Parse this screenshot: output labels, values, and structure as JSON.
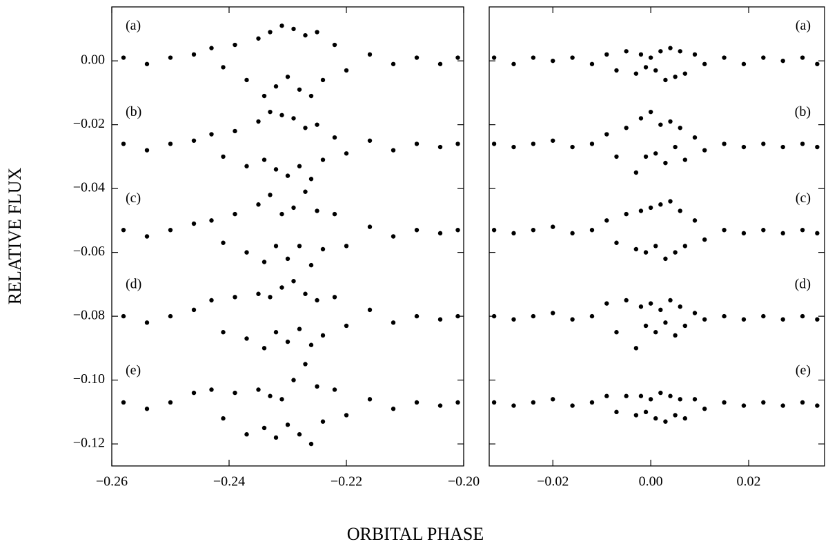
{
  "figure": {
    "xlabel": "ORBITAL PHASE",
    "ylabel": "RELATIVE FLUX"
  },
  "chart_data": [
    {
      "type": "scatter",
      "xlim": [
        -0.26,
        -0.2
      ],
      "ylim": [
        -0.1269,
        0.0169
      ],
      "xticks": [
        {
          "value": -0.26,
          "label": "−0.26"
        },
        {
          "value": -0.24,
          "label": "−0.24"
        },
        {
          "value": -0.22,
          "label": "−0.22"
        },
        {
          "value": -0.2,
          "label": "−0.20"
        }
      ],
      "yticks": [
        {
          "value": 0,
          "label": "0.00"
        },
        {
          "value": -0.02,
          "label": "−0.02"
        },
        {
          "value": -0.04,
          "label": "−0.04"
        },
        {
          "value": -0.06,
          "label": "−0.06"
        },
        {
          "value": -0.08,
          "label": "−0.08"
        },
        {
          "value": -0.1,
          "label": "−0.10"
        },
        {
          "value": -0.12,
          "label": "−0.12"
        }
      ],
      "label_side": "left",
      "x": [
        -0.258,
        -0.254,
        -0.25,
        -0.246,
        -0.243,
        -0.241,
        -0.239,
        -0.237,
        -0.235,
        -0.234,
        -0.233,
        -0.232,
        -0.231,
        -0.23,
        -0.229,
        -0.228,
        -0.227,
        -0.226,
        -0.225,
        -0.224,
        -0.222,
        -0.22,
        -0.216,
        -0.212,
        -0.208,
        -0.204,
        -0.201
      ],
      "series": [
        {
          "name": "(a)",
          "color": "#000000",
          "values": [
            0.001,
            -0.001,
            0.001,
            0.002,
            0.004,
            -0.002,
            0.005,
            -0.006,
            0.007,
            -0.011,
            0.009,
            -0.008,
            0.011,
            -0.005,
            0.01,
            -0.009,
            0.008,
            -0.011,
            0.009,
            -0.006,
            0.005,
            -0.003,
            0.002,
            -0.001,
            0.001,
            -0.001,
            0.001
          ]
        },
        {
          "name": "(b)",
          "color": "#000000",
          "values": [
            -0.026,
            -0.028,
            -0.026,
            -0.025,
            -0.023,
            -0.03,
            -0.022,
            -0.033,
            -0.019,
            -0.031,
            -0.016,
            -0.034,
            -0.017,
            -0.036,
            -0.018,
            -0.033,
            -0.021,
            -0.037,
            -0.02,
            -0.031,
            -0.024,
            -0.029,
            -0.025,
            -0.028,
            -0.026,
            -0.027,
            -0.026
          ]
        },
        {
          "name": "(c)",
          "color": "#000000",
          "values": [
            -0.053,
            -0.055,
            -0.053,
            -0.051,
            -0.05,
            -0.057,
            -0.048,
            -0.06,
            -0.045,
            -0.063,
            -0.042,
            -0.058,
            -0.048,
            -0.062,
            -0.046,
            -0.058,
            -0.041,
            -0.064,
            -0.047,
            -0.059,
            -0.048,
            -0.058,
            -0.052,
            -0.055,
            -0.053,
            -0.054,
            -0.053
          ]
        },
        {
          "name": "(d)",
          "color": "#000000",
          "values": [
            -0.08,
            -0.082,
            -0.08,
            -0.078,
            -0.075,
            -0.085,
            -0.074,
            -0.087,
            -0.073,
            -0.09,
            -0.074,
            -0.085,
            -0.071,
            -0.088,
            -0.069,
            -0.084,
            -0.073,
            -0.089,
            -0.075,
            -0.086,
            -0.074,
            -0.083,
            -0.078,
            -0.082,
            -0.08,
            -0.081,
            -0.08
          ]
        },
        {
          "name": "(e)",
          "color": "#000000",
          "values": [
            -0.107,
            -0.109,
            -0.107,
            -0.104,
            -0.103,
            -0.112,
            -0.104,
            -0.117,
            -0.103,
            -0.115,
            -0.105,
            -0.118,
            -0.106,
            -0.114,
            -0.1,
            -0.117,
            -0.095,
            -0.12,
            -0.102,
            -0.113,
            -0.103,
            -0.111,
            -0.106,
            -0.109,
            -0.107,
            -0.108,
            -0.107
          ]
        }
      ]
    },
    {
      "type": "scatter",
      "xlim": [
        -0.033,
        0.0355
      ],
      "ylim": [
        -0.1269,
        0.0169
      ],
      "xticks": [
        {
          "value": -0.02,
          "label": "−0.02"
        },
        {
          "value": 0,
          "label": "0.00"
        },
        {
          "value": 0.02,
          "label": "0.02"
        }
      ],
      "yticks": [
        0,
        -0.02,
        -0.04,
        -0.06,
        -0.08,
        -0.1,
        -0.12
      ],
      "label_side": "right",
      "x": [
        -0.032,
        -0.028,
        -0.024,
        -0.02,
        -0.016,
        -0.012,
        -0.009,
        -0.007,
        -0.005,
        -0.003,
        -0.002,
        -0.001,
        0.0,
        0.001,
        0.002,
        0.003,
        0.004,
        0.005,
        0.006,
        0.007,
        0.009,
        0.011,
        0.015,
        0.019,
        0.023,
        0.027,
        0.031,
        0.034
      ],
      "series": [
        {
          "name": "(a)",
          "color": "#000000",
          "values": [
            0.001,
            -0.001,
            0.001,
            0.0,
            0.001,
            -0.001,
            0.002,
            -0.003,
            0.003,
            -0.004,
            0.002,
            -0.002,
            0.001,
            -0.003,
            0.003,
            -0.006,
            0.004,
            -0.005,
            0.003,
            -0.004,
            0.002,
            -0.001,
            0.001,
            -0.001,
            0.001,
            0.0,
            0.001,
            -0.001
          ]
        },
        {
          "name": "(b)",
          "color": "#000000",
          "values": [
            -0.026,
            -0.027,
            -0.026,
            -0.025,
            -0.027,
            -0.026,
            -0.023,
            -0.03,
            -0.021,
            -0.035,
            -0.018,
            -0.03,
            -0.016,
            -0.029,
            -0.02,
            -0.032,
            -0.019,
            -0.027,
            -0.021,
            -0.031,
            -0.024,
            -0.028,
            -0.026,
            -0.027,
            -0.026,
            -0.027,
            -0.026,
            -0.027
          ]
        },
        {
          "name": "(c)",
          "color": "#000000",
          "values": [
            -0.053,
            -0.054,
            -0.053,
            -0.052,
            -0.054,
            -0.053,
            -0.05,
            -0.057,
            -0.048,
            -0.059,
            -0.047,
            -0.06,
            -0.046,
            -0.058,
            -0.045,
            -0.062,
            -0.044,
            -0.06,
            -0.047,
            -0.058,
            -0.05,
            -0.056,
            -0.053,
            -0.054,
            -0.053,
            -0.054,
            -0.053,
            -0.054
          ]
        },
        {
          "name": "(d)",
          "color": "#000000",
          "values": [
            -0.08,
            -0.081,
            -0.08,
            -0.079,
            -0.081,
            -0.08,
            -0.076,
            -0.085,
            -0.075,
            -0.09,
            -0.077,
            -0.083,
            -0.076,
            -0.085,
            -0.078,
            -0.082,
            -0.075,
            -0.086,
            -0.077,
            -0.083,
            -0.079,
            -0.081,
            -0.08,
            -0.081,
            -0.08,
            -0.081,
            -0.08,
            -0.081
          ]
        },
        {
          "name": "(e)",
          "color": "#000000",
          "values": [
            -0.107,
            -0.108,
            -0.107,
            -0.106,
            -0.108,
            -0.107,
            -0.105,
            -0.11,
            -0.105,
            -0.111,
            -0.105,
            -0.11,
            -0.106,
            -0.112,
            -0.104,
            -0.113,
            -0.105,
            -0.111,
            -0.106,
            -0.112,
            -0.106,
            -0.109,
            -0.107,
            -0.108,
            -0.107,
            -0.108,
            -0.107,
            -0.108
          ]
        }
      ]
    }
  ]
}
